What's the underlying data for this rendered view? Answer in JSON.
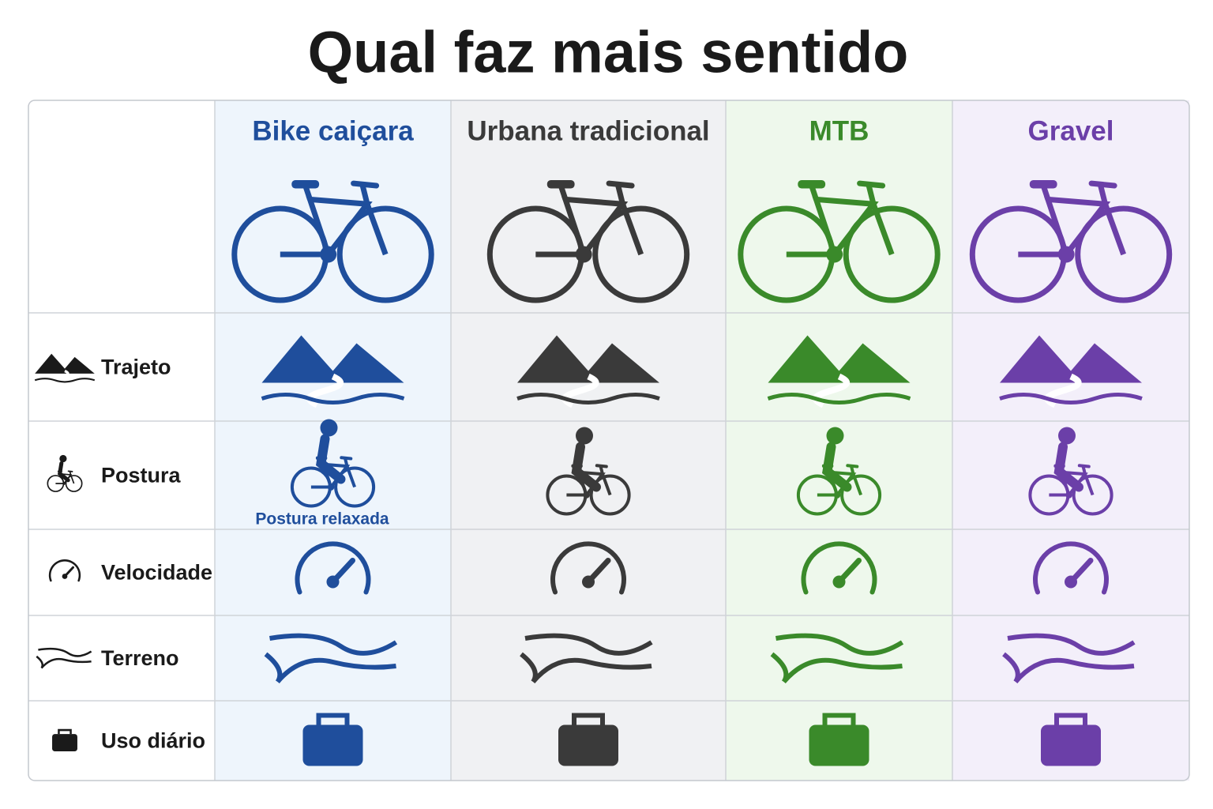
{
  "title": "Qual faz mais sentido",
  "columns": [
    {
      "name": "Bike caiçara",
      "color": "#1f4e9c",
      "background": "#eef5fc"
    },
    {
      "name": "Urbana tradicional",
      "color": "#3a3a3a",
      "background": "#f0f1f3"
    },
    {
      "name": "MTB",
      "color": "#3a8a2a",
      "background": "#eef8ec"
    },
    {
      "name": "Gravel",
      "color": "#6b3fa8",
      "background": "#f3effa"
    }
  ],
  "rows": [
    "Trajeto",
    "Postura",
    "Velocidade",
    "Terreno",
    "Uso diário"
  ],
  "annotation": "Postura relaxada"
}
